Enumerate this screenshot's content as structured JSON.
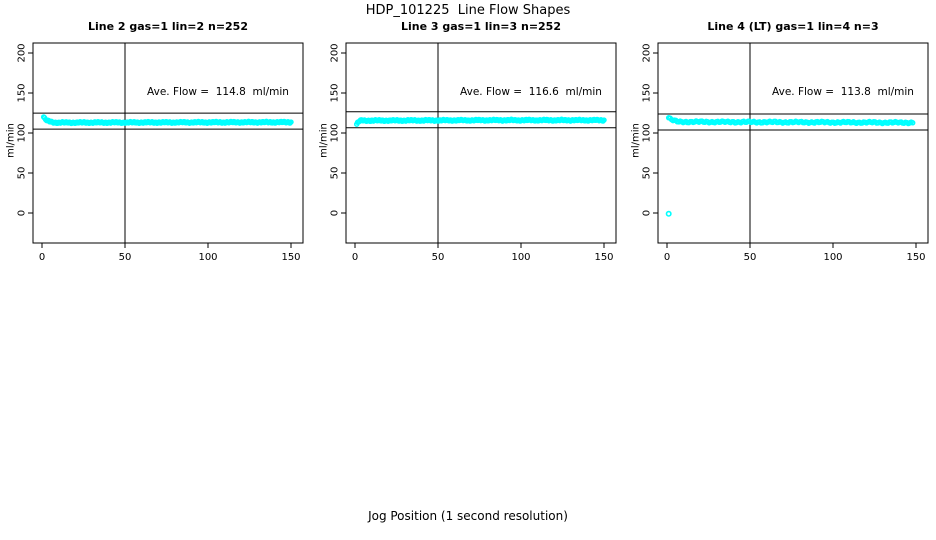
{
  "figure": {
    "title": "HDP_101225  Line Flow Shapes",
    "xlabel": "Jog Position (1 second resolution)"
  },
  "chart_data": {
    "type": "scatter",
    "title": "HDP_101225  Line Flow Shapes",
    "xlabel": "Jog Position (1 second resolution)",
    "ylabel": "ml/min",
    "x_ticks": [
      0,
      50,
      100,
      150
    ],
    "y_ticks": [
      0,
      50,
      100,
      150,
      200
    ],
    "xlim": [
      -6,
      157
    ],
    "ylim": [
      -38,
      216
    ],
    "grid": false,
    "legend": "none",
    "point_color": "#00FFFF",
    "axis_color": "#000000",
    "panels": [
      {
        "title": "Line 2 gas=1 lin=2 n=252",
        "ylabel": "ml/min",
        "annotation": "Ave. Flow =  114.8  ml/min",
        "ave_flow_ml_min": 114.8,
        "n": 252,
        "vline_x": 50,
        "ref_line_upper": 124.8,
        "ref_line_lower": 104.8,
        "profile": [
          [
            1,
            120
          ],
          [
            2,
            117
          ],
          [
            3,
            115.5
          ],
          [
            5,
            114
          ],
          [
            8,
            113
          ],
          [
            150,
            113.5
          ]
        ],
        "outliers": [],
        "x_start": 1,
        "x_end": 150,
        "points_rendered": 252,
        "jitter": 0.8
      },
      {
        "title": "Line 3 gas=1 lin=3 n=252",
        "ylabel": "ml/min",
        "annotation": "Ave. Flow =  116.6  ml/min",
        "ave_flow_ml_min": 116.6,
        "n": 252,
        "vline_x": 50,
        "ref_line_upper": 126.6,
        "ref_line_lower": 106.6,
        "profile": [
          [
            1,
            111
          ],
          [
            2,
            113.5
          ],
          [
            3,
            115.5
          ],
          [
            80,
            116
          ],
          [
            150,
            116
          ]
        ],
        "outliers": [],
        "x_start": 1,
        "x_end": 150,
        "points_rendered": 252,
        "jitter": 0.8
      },
      {
        "title": "Line 4 (LT) gas=1 lin=4 n=3",
        "ylabel": "ml/min",
        "annotation": "Ave. Flow =  113.8  ml/min",
        "ave_flow_ml_min": 113.8,
        "n": 3,
        "vline_x": 50,
        "ref_line_upper": 123.8,
        "ref_line_lower": 103.8,
        "profile": [
          [
            1,
            119
          ],
          [
            2,
            117.5
          ],
          [
            4,
            115.5
          ],
          [
            7,
            114
          ],
          [
            148,
            113
          ]
        ],
        "outliers": [
          [
            1,
            -1
          ]
        ],
        "x_start": 1,
        "x_end": 148,
        "points_rendered": 170,
        "jitter": 0.9
      }
    ]
  }
}
